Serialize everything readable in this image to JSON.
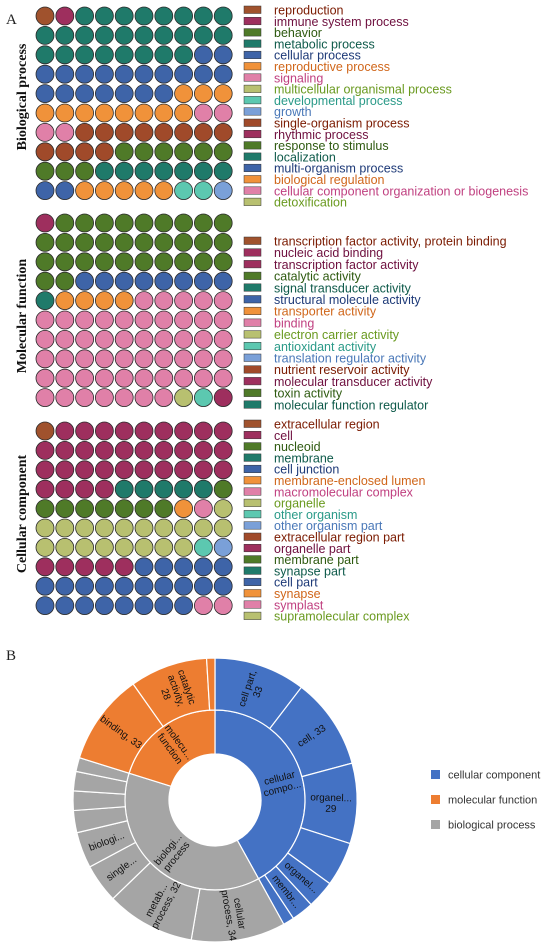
{
  "panel_a": {
    "letter": "A",
    "sections": [
      {
        "title": "Biological process",
        "legend": [
          {
            "label": "reproduction",
            "color": "#a0522d",
            "text_color": "#7a1a00"
          },
          {
            "label": "immune system process",
            "color": "#9e2f5e",
            "text_color": "#6e0f3e"
          },
          {
            "label": "behavior",
            "color": "#4f7a28",
            "text_color": "#2e5a10"
          },
          {
            "label": "metabolic process",
            "color": "#1f7a6a",
            "text_color": "#0e5a4a"
          },
          {
            "label": "cellular process",
            "color": "#3e64a8",
            "text_color": "#1e3a78"
          },
          {
            "label": "reproductive process",
            "color": "#f0923a",
            "text_color": "#d0661a"
          },
          {
            "label": "signaling",
            "color": "#e080a8",
            "text_color": "#c04080"
          },
          {
            "label": "multicellular organismal process",
            "color": "#b8c070",
            "text_color": "#6a9a20"
          },
          {
            "label": "developmental process",
            "color": "#5cc8b0",
            "text_color": "#2a9a88"
          },
          {
            "label": "growth",
            "color": "#7aa0d8",
            "text_color": "#4a78b8"
          },
          {
            "label": "single-organism process",
            "color": "#a04a2a",
            "text_color": "#7a1a00"
          },
          {
            "label": "rhythmic process",
            "color": "#9e2f5e",
            "text_color": "#6e0f3e"
          },
          {
            "label": "response to stimulus",
            "color": "#4f7a28",
            "text_color": "#2e5a10"
          },
          {
            "label": "localization",
            "color": "#1f7a6a",
            "text_color": "#0e5a4a"
          },
          {
            "label": "multi-organism process",
            "color": "#3e64a8",
            "text_color": "#1e3a78"
          },
          {
            "label": "biological regulation",
            "color": "#f0923a",
            "text_color": "#d0661a"
          },
          {
            "label": "cellular component organization or biogenesis",
            "color": "#e080a8",
            "text_color": "#c04080"
          },
          {
            "label": "detoxification",
            "color": "#b8c070",
            "text_color": "#6a9a20"
          }
        ]
      },
      {
        "title": "Molecular function",
        "legend": [
          {
            "label": "transcription factor activity, protein binding",
            "color": "#a0522d",
            "text_color": "#7a1a00"
          },
          {
            "label": "nucleic acid binding",
            "color": "#9e2f5e",
            "text_color": "#6e0f3e"
          },
          {
            "label": " transcription factor activity",
            "color": "#9e2f5e",
            "text_color": "#6e0f3e"
          },
          {
            "label": "catalytic activity",
            "color": "#4f7a28",
            "text_color": "#2e5a10"
          },
          {
            "label": "signal transducer activity",
            "color": "#1f7a6a",
            "text_color": "#0e5a4a"
          },
          {
            "label": "structural molecule activity",
            "color": "#3e64a8",
            "text_color": "#1e3a78"
          },
          {
            "label": "transporter activity",
            "color": "#f0923a",
            "text_color": "#d0661a"
          },
          {
            "label": "binding",
            "color": "#e080a8",
            "text_color": "#c04080"
          },
          {
            "label": "electron carrier activity",
            "color": "#b8c070",
            "text_color": "#6a9a20"
          },
          {
            "label": "antioxidant activity",
            "color": "#5cc8b0",
            "text_color": "#2a9a88"
          },
          {
            "label": "translation regulator activity",
            "color": "#7aa0d8",
            "text_color": "#4a78b8"
          },
          {
            "label": "nutrient reservoir activity",
            "color": "#a04a2a",
            "text_color": "#7a1a00"
          },
          {
            "label": "molecular transducer activity",
            "color": "#9e2f5e",
            "text_color": "#6e0f3e"
          },
          {
            "label": "toxin activity",
            "color": "#4f7a28",
            "text_color": "#2e5a10"
          },
          {
            "label": "molecular function regulator",
            "color": "#1f7a6a",
            "text_color": "#0e5a4a"
          }
        ]
      },
      {
        "title": "Cellular component",
        "legend": [
          {
            "label": "extracellular region",
            "color": "#a0522d",
            "text_color": "#7a1a00"
          },
          {
            "label": "cell",
            "color": "#9e2f5e",
            "text_color": "#6e0f3e"
          },
          {
            "label": "nucleoid",
            "color": "#4f7a28",
            "text_color": "#2e5a10"
          },
          {
            "label": "membrane",
            "color": "#1f7a6a",
            "text_color": "#0e5a4a"
          },
          {
            "label": "cell junction",
            "color": "#3e64a8",
            "text_color": "#1e3a78"
          },
          {
            "label": "membrane-enclosed lumen",
            "color": "#f0923a",
            "text_color": "#d0661a"
          },
          {
            "label": "macromolecular complex",
            "color": "#e080a8",
            "text_color": "#c04080"
          },
          {
            "label": "organelle",
            "color": "#b8c070",
            "text_color": "#6a9a20"
          },
          {
            "label": "other organism",
            "color": "#5cc8b0",
            "text_color": "#2a9a88"
          },
          {
            "label": "other organism part",
            "color": "#7aa0d8",
            "text_color": "#4a78b8"
          },
          {
            "label": "extracellular region part",
            "color": "#a04a2a",
            "text_color": "#7a1a00"
          },
          {
            "label": "organelle part",
            "color": "#9e2f5e",
            "text_color": "#6e0f3e"
          },
          {
            "label": "membrane part",
            "color": "#4f7a28",
            "text_color": "#2e5a10"
          },
          {
            "label": "synapse part",
            "color": "#1f7a6a",
            "text_color": "#0e5a4a"
          },
          {
            "label": "cell part",
            "color": "#3e64a8",
            "text_color": "#1e3a78"
          },
          {
            "label": "synapse",
            "color": "#f0923a",
            "text_color": "#d0661a"
          },
          {
            "label": "symplast",
            "color": "#e080a8",
            "text_color": "#c04080"
          },
          {
            "label": "supramolecular complex",
            "color": "#b8c070",
            "text_color": "#6a9a20"
          }
        ]
      }
    ]
  },
  "chart_data": [
    {
      "type": "waffle",
      "title": "",
      "columns": 10,
      "cells_per_section": 100,
      "sections": [
        {
          "name": "Biological process",
          "counts": {
            "reproduction": 1,
            "immune system process": 1,
            "metabolic process": 26,
            "cellular process": 19,
            "reproductive process": 11,
            "signaling": 4,
            "single-organism process": 12,
            "response to stimulus": 9,
            "localization": 7,
            "multi-organism process": 2,
            "biological regulation": 5,
            "developmental process": 2,
            "growth": 1
          }
        },
        {
          "name": "Molecular function",
          "counts": {
            "nucleic acid binding": 1,
            "catalytic activity": 31,
            "structural molecule activity": 8,
            "signal transducer activity": 1,
            "transporter activity": 4,
            "binding": 52,
            "electron carrier activity": 1,
            "antioxidant activity": 1,
            "molecular transducer activity": 1
          }
        },
        {
          "name": "Cellular component",
          "counts": {
            "extracellular region": 1,
            "cell": 33,
            "membrane": 5,
            "nucleoid": 8,
            "membrane-enclosed lumen": 1,
            "macromolecular complex": 1,
            "organelle": 19,
            "other organism": 1,
            "other organism part": 1,
            "organelle part": 5,
            "cell part": 23,
            "symplast": 1
          }
        }
      ]
    },
    {
      "type": "sunburst",
      "panel_letter": "B",
      "legend": [
        {
          "name": "cellular component",
          "color": "#4472c4"
        },
        {
          "name": "molecular function",
          "color": "#ed7d31"
        },
        {
          "name": "biological process",
          "color": "#a5a5a5"
        }
      ],
      "inner": [
        {
          "label": "cellular compo...",
          "category": "cellular component",
          "value": 133
        },
        {
          "label": "biologi... process",
          "category": "biological process",
          "value": 120
        },
        {
          "label": "molecu... function",
          "category": "molecular function",
          "value": 64
        }
      ],
      "outer": [
        {
          "label": "cell part, 33",
          "category": "cellular component",
          "value": 33
        },
        {
          "label": "cell, 33",
          "category": "cellular component",
          "value": 33
        },
        {
          "label": "organel... 29",
          "category": "cellular component",
          "value": 29
        },
        {
          "label": "",
          "category": "cellular component",
          "value": 16
        },
        {
          "label": "organel...",
          "category": "cellular component",
          "value": 10
        },
        {
          "label": "membr...",
          "category": "cellular component",
          "value": 8
        },
        {
          "label": "",
          "category": "cellular component",
          "value": 4
        },
        {
          "label": "cellular process, 34",
          "category": "biological process",
          "value": 34
        },
        {
          "label": "metab... process, 32",
          "category": "biological process",
          "value": 32
        },
        {
          "label": "single...",
          "category": "biological process",
          "value": 14
        },
        {
          "label": "biologi...",
          "category": "biological process",
          "value": 13
        },
        {
          "label": "",
          "category": "biological process",
          "value": 8
        },
        {
          "label": "",
          "category": "biological process",
          "value": 7
        },
        {
          "label": "",
          "category": "biological process",
          "value": 7
        },
        {
          "label": "",
          "category": "biological process",
          "value": 5
        },
        {
          "label": "binding, 33",
          "category": "molecular function",
          "value": 33
        },
        {
          "label": "catalytic activity, 28",
          "category": "molecular function",
          "value": 28
        },
        {
          "label": "",
          "category": "molecular function",
          "value": 3
        }
      ]
    }
  ]
}
